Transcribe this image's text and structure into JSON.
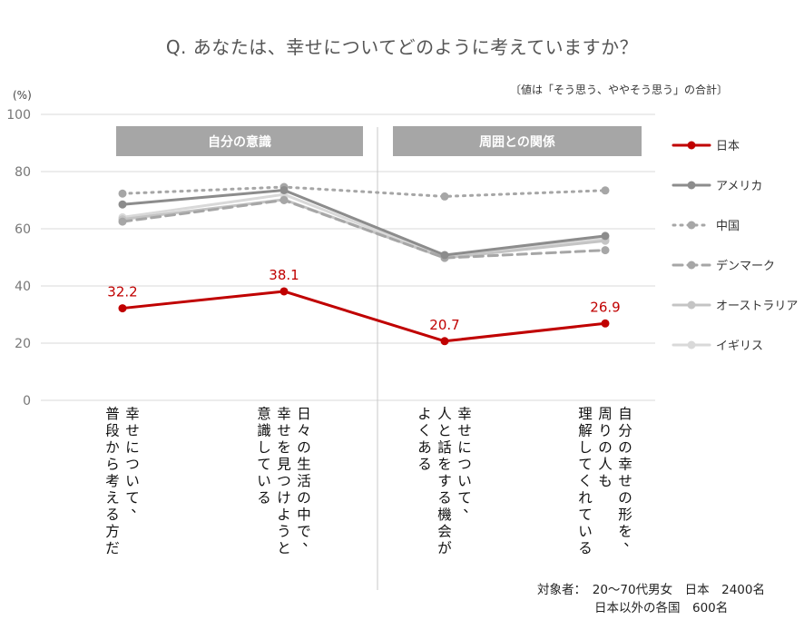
{
  "title": "Q. あなたは、幸せについてどのように考えていますか？",
  "note": "〔値は「そう思う、ややそう思う」の合計〕",
  "footer": {
    "line1": "対象者：　20～70代男女　日本　2400名",
    "line2": "日本以外の各国　600名"
  },
  "chart_data": {
    "type": "line",
    "unit_label": "(%)",
    "ylim": [
      0,
      100
    ],
    "yticks": [
      0,
      20,
      40,
      60,
      80,
      100
    ],
    "grid": true,
    "legend_position": "right",
    "sections": [
      "自分の意識",
      "周囲との関係"
    ],
    "categories": [
      [
        "幸せについて、",
        "普段から考える方だ"
      ],
      [
        "日々の生活の中で、",
        "幸せを見つけようと",
        "意識している"
      ],
      [
        "幸せについて、",
        "人と話をする機会が",
        "よくある"
      ],
      [
        "自分の幸せの形を、",
        "周りの人も",
        "理解してくれている"
      ]
    ],
    "series": [
      {
        "name": "日本",
        "values": [
          32.2,
          38.1,
          20.7,
          26.9
        ],
        "color": "#c00000",
        "style": "solid",
        "labels": true
      },
      {
        "name": "アメリカ",
        "values": [
          68.5,
          73.5,
          50.8,
          57.5
        ],
        "color": "#8c8c8c",
        "style": "solid"
      },
      {
        "name": "中国",
        "values": [
          72.3,
          74.6,
          71.3,
          73.4
        ],
        "color": "#a6a6a6",
        "style": "dotted"
      },
      {
        "name": "デンマーク",
        "values": [
          62.5,
          70.0,
          49.8,
          52.5
        ],
        "color": "#a6a6a6",
        "style": "dashed"
      },
      {
        "name": "オーストラリア",
        "values": [
          63.3,
          70.2,
          49.8,
          55.8
        ],
        "color": "#c4c4c4",
        "style": "solid"
      },
      {
        "name": "イギリス",
        "values": [
          64.0,
          72.0,
          50.2,
          56.5
        ],
        "color": "#d9d9d9",
        "style": "solid"
      }
    ]
  }
}
